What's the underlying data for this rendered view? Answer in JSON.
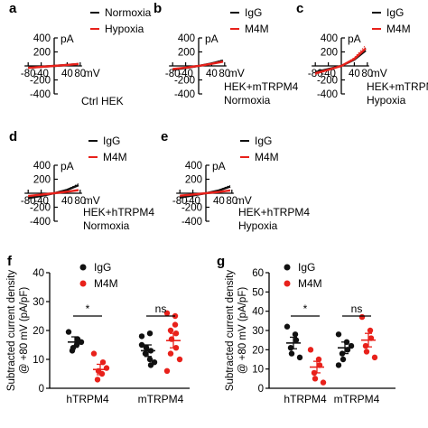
{
  "colors": {
    "black": "#111111",
    "red": "#e8211b",
    "axis": "#000000"
  },
  "chart_data": [
    {
      "type": "line",
      "panel": "a",
      "y_unit": "pA",
      "x_unit": "mV",
      "xticks": [
        "-80",
        "-40",
        "40",
        "80"
      ],
      "yticks": [
        "400",
        "200",
        "-200",
        "-400"
      ],
      "xlim": [
        -80,
        80
      ],
      "ylim": [
        -400,
        400
      ],
      "caption_lines": [
        "Ctrl   HEK"
      ],
      "series": [
        {
          "name": "Normoxia",
          "color": "#111111",
          "x": [
            -80,
            -40,
            0,
            40,
            75
          ],
          "y": [
            -25,
            -12,
            0,
            13,
            26
          ]
        },
        {
          "name": "Hypoxia",
          "color": "#e8211b",
          "x": [
            -80,
            -40,
            0,
            40,
            75
          ],
          "y": [
            -28,
            -14,
            0,
            14,
            28
          ]
        }
      ]
    },
    {
      "type": "line",
      "panel": "b",
      "y_unit": "pA",
      "x_unit": "mV",
      "xticks": [
        "-80",
        "-40",
        "40",
        "80"
      ],
      "yticks": [
        "400",
        "200",
        "-200",
        "-400"
      ],
      "xlim": [
        -80,
        80
      ],
      "ylim": [
        -400,
        400
      ],
      "caption_lines": [
        "HEK+mTRPM4",
        "Normoxia"
      ],
      "series": [
        {
          "name": "IgG",
          "color": "#111111",
          "x": [
            -80,
            -40,
            0,
            40,
            75
          ],
          "y": [
            -55,
            -30,
            0,
            35,
            75
          ]
        },
        {
          "name": "M4M",
          "color": "#e8211b",
          "x": [
            -80,
            -40,
            0,
            40,
            75
          ],
          "y": [
            -45,
            -25,
            0,
            30,
            60
          ]
        }
      ]
    },
    {
      "type": "line",
      "panel": "c",
      "y_unit": "pA",
      "x_unit": "mV",
      "xticks": [
        "-80",
        "-40",
        "40",
        "80"
      ],
      "yticks": [
        "400",
        "200",
        "-200",
        "-400"
      ],
      "xlim": [
        -80,
        80
      ],
      "ylim": [
        -400,
        400
      ],
      "caption_lines": [
        "HEK+mTRPM4",
        "Hypoxia"
      ],
      "series": [
        {
          "name": "IgG",
          "color": "#111111",
          "x": [
            -80,
            -40,
            0,
            40,
            75
          ],
          "y": [
            -90,
            -45,
            0,
            90,
            220
          ]
        },
        {
          "name": "M4M",
          "color": "#e8211b",
          "x": [
            -80,
            -40,
            0,
            40,
            75
          ],
          "y": [
            -105,
            -55,
            0,
            100,
            250
          ]
        }
      ]
    },
    {
      "type": "line",
      "panel": "d",
      "y_unit": "pA",
      "x_unit": "mV",
      "xticks": [
        "-80",
        "-40",
        "40",
        "80"
      ],
      "yticks": [
        "400",
        "200",
        "-200",
        "-400"
      ],
      "xlim": [
        -80,
        80
      ],
      "ylim": [
        -400,
        400
      ],
      "caption_lines": [
        "HEK+hTRPM4",
        "Normoxia"
      ],
      "series": [
        {
          "name": "IgG",
          "color": "#111111",
          "x": [
            -80,
            -40,
            0,
            40,
            75
          ],
          "y": [
            -70,
            -38,
            0,
            48,
            115
          ]
        },
        {
          "name": "M4M",
          "color": "#e8211b",
          "x": [
            -80,
            -40,
            0,
            40,
            75
          ],
          "y": [
            -40,
            -20,
            0,
            22,
            45
          ]
        }
      ]
    },
    {
      "type": "line",
      "panel": "e",
      "y_unit": "pA",
      "x_unit": "mV",
      "xticks": [
        "-80",
        "-40",
        "40",
        "80"
      ],
      "yticks": [
        "400",
        "200",
        "-200",
        "-400"
      ],
      "xlim": [
        -80,
        80
      ],
      "ylim": [
        -400,
        400
      ],
      "caption_lines": [
        "HEK+hTRPM4",
        "Hypoxia"
      ],
      "series": [
        {
          "name": "IgG",
          "color": "#111111",
          "x": [
            -80,
            -40,
            0,
            40,
            75
          ],
          "y": [
            -60,
            -32,
            0,
            40,
            95
          ]
        },
        {
          "name": "M4M",
          "color": "#e8211b",
          "x": [
            -80,
            -40,
            0,
            40,
            75
          ],
          "y": [
            -35,
            -18,
            0,
            18,
            40
          ]
        }
      ]
    },
    {
      "type": "scatter",
      "panel": "f",
      "ylabel_lines": [
        "Subtracted current density",
        "@ +80 mV (pA/pF)"
      ],
      "yticks": [
        "0",
        "10",
        "20",
        "30",
        "40"
      ],
      "ylim": [
        0,
        40
      ],
      "categories": [
        "hTRPM4",
        "mTRPM4"
      ],
      "legend": [
        {
          "name": "IgG",
          "color": "#111111"
        },
        {
          "name": "M4M",
          "color": "#e8211b"
        }
      ],
      "groups": [
        {
          "category": "hTRPM4",
          "series": "IgG",
          "color": "#111111",
          "values": [
            19.5,
            15,
            17,
            13,
            14,
            16
          ],
          "mean": 16,
          "sem": 1.8
        },
        {
          "category": "hTRPM4",
          "series": "M4M",
          "color": "#e8211b",
          "values": [
            12,
            5,
            9,
            3,
            6,
            7
          ],
          "mean": 6.5,
          "sem": 1.8
        },
        {
          "category": "mTRPM4",
          "series": "IgG",
          "color": "#111111",
          "values": [
            18,
            10,
            13,
            12,
            14,
            9,
            15,
            19,
            8
          ],
          "mean": 13,
          "sem": 2
        },
        {
          "category": "mTRPM4",
          "series": "M4M",
          "color": "#e8211b",
          "values": [
            26,
            22,
            19,
            12,
            17,
            10,
            6,
            25,
            14,
            20
          ],
          "mean": 16.5,
          "sem": 2.5
        }
      ],
      "annotations": [
        {
          "category": "hTRPM4",
          "text": "*"
        },
        {
          "category": "mTRPM4",
          "text": "ns"
        }
      ]
    },
    {
      "type": "scatter",
      "panel": "g",
      "ylabel_lines": [
        "Subtracted current density",
        "@ +80 mV (pA/pF)"
      ],
      "yticks": [
        "0",
        "10",
        "20",
        "30",
        "40",
        "50",
        "60"
      ],
      "ylim": [
        0,
        60
      ],
      "categories": [
        "hTRPM4",
        "mTRPM4"
      ],
      "legend": [
        {
          "name": "IgG",
          "color": "#111111"
        },
        {
          "name": "M4M",
          "color": "#e8211b"
        }
      ],
      "groups": [
        {
          "category": "hTRPM4",
          "series": "IgG",
          "color": "#111111",
          "values": [
            32,
            28,
            25,
            21,
            18,
            16
          ],
          "mean": 23.5,
          "sem": 3
        },
        {
          "category": "hTRPM4",
          "series": "M4M",
          "color": "#e8211b",
          "values": [
            20,
            15,
            12,
            8,
            5,
            3
          ],
          "mean": 11,
          "sem": 3
        },
        {
          "category": "mTRPM4",
          "series": "IgG",
          "color": "#111111",
          "values": [
            28,
            24,
            20,
            18,
            15,
            22,
            12
          ],
          "mean": 21,
          "sem": 3
        },
        {
          "category": "mTRPM4",
          "series": "M4M",
          "color": "#e8211b",
          "values": [
            37,
            30,
            26,
            22,
            19,
            16
          ],
          "mean": 25,
          "sem": 3.5
        }
      ],
      "annotations": [
        {
          "category": "hTRPM4",
          "text": "*"
        },
        {
          "category": "mTRPM4",
          "text": "ns"
        }
      ]
    }
  ]
}
